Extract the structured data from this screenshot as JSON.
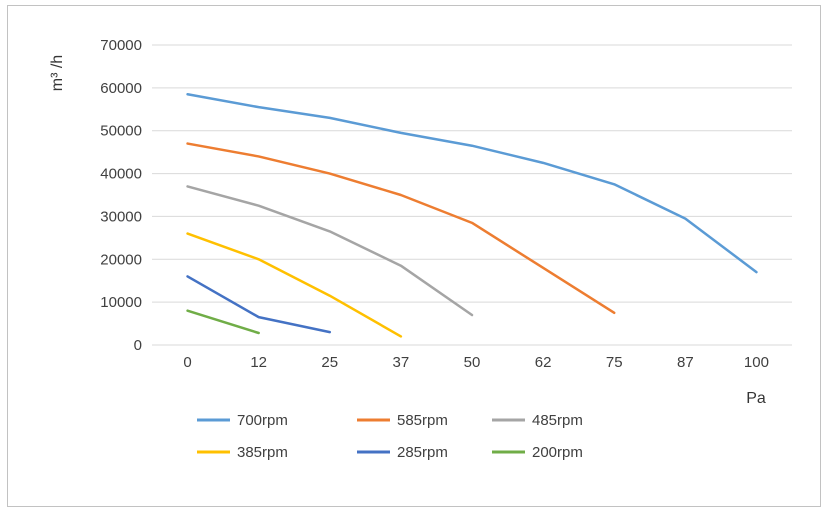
{
  "chart_data": {
    "type": "line",
    "title": "",
    "xlabel": "Pa",
    "ylabel": "m³ /h",
    "x": [
      0,
      12,
      25,
      37,
      50,
      62,
      75,
      87,
      100
    ],
    "ylim": [
      0,
      70000
    ],
    "yticks": [
      0,
      10000,
      20000,
      30000,
      40000,
      50000,
      60000,
      70000
    ],
    "grid": true,
    "legend_position": "bottom",
    "series": [
      {
        "name": "700rpm",
        "color": "#5B9BD5",
        "values": [
          58500,
          55500,
          53000,
          49500,
          46500,
          42500,
          37500,
          29500,
          17000
        ]
      },
      {
        "name": "585rpm",
        "color": "#ED7D31",
        "values": [
          47000,
          44000,
          40000,
          35000,
          28500,
          18000,
          7500
        ]
      },
      {
        "name": "485rpm",
        "color": "#A5A5A5",
        "values": [
          37000,
          32500,
          26500,
          18500,
          7000
        ]
      },
      {
        "name": "385rpm",
        "color": "#FFC000",
        "values": [
          26000,
          20000,
          11500,
          2000
        ]
      },
      {
        "name": "285rpm",
        "color": "#4472C4",
        "values": [
          16000,
          6500,
          3000
        ]
      },
      {
        "name": "200rpm",
        "color": "#70AD47",
        "values": [
          8000,
          2800
        ]
      }
    ]
  },
  "colors": {
    "gridline": "#d9d9d9",
    "border": "#c2c2c2",
    "tick_text": "#404040"
  }
}
